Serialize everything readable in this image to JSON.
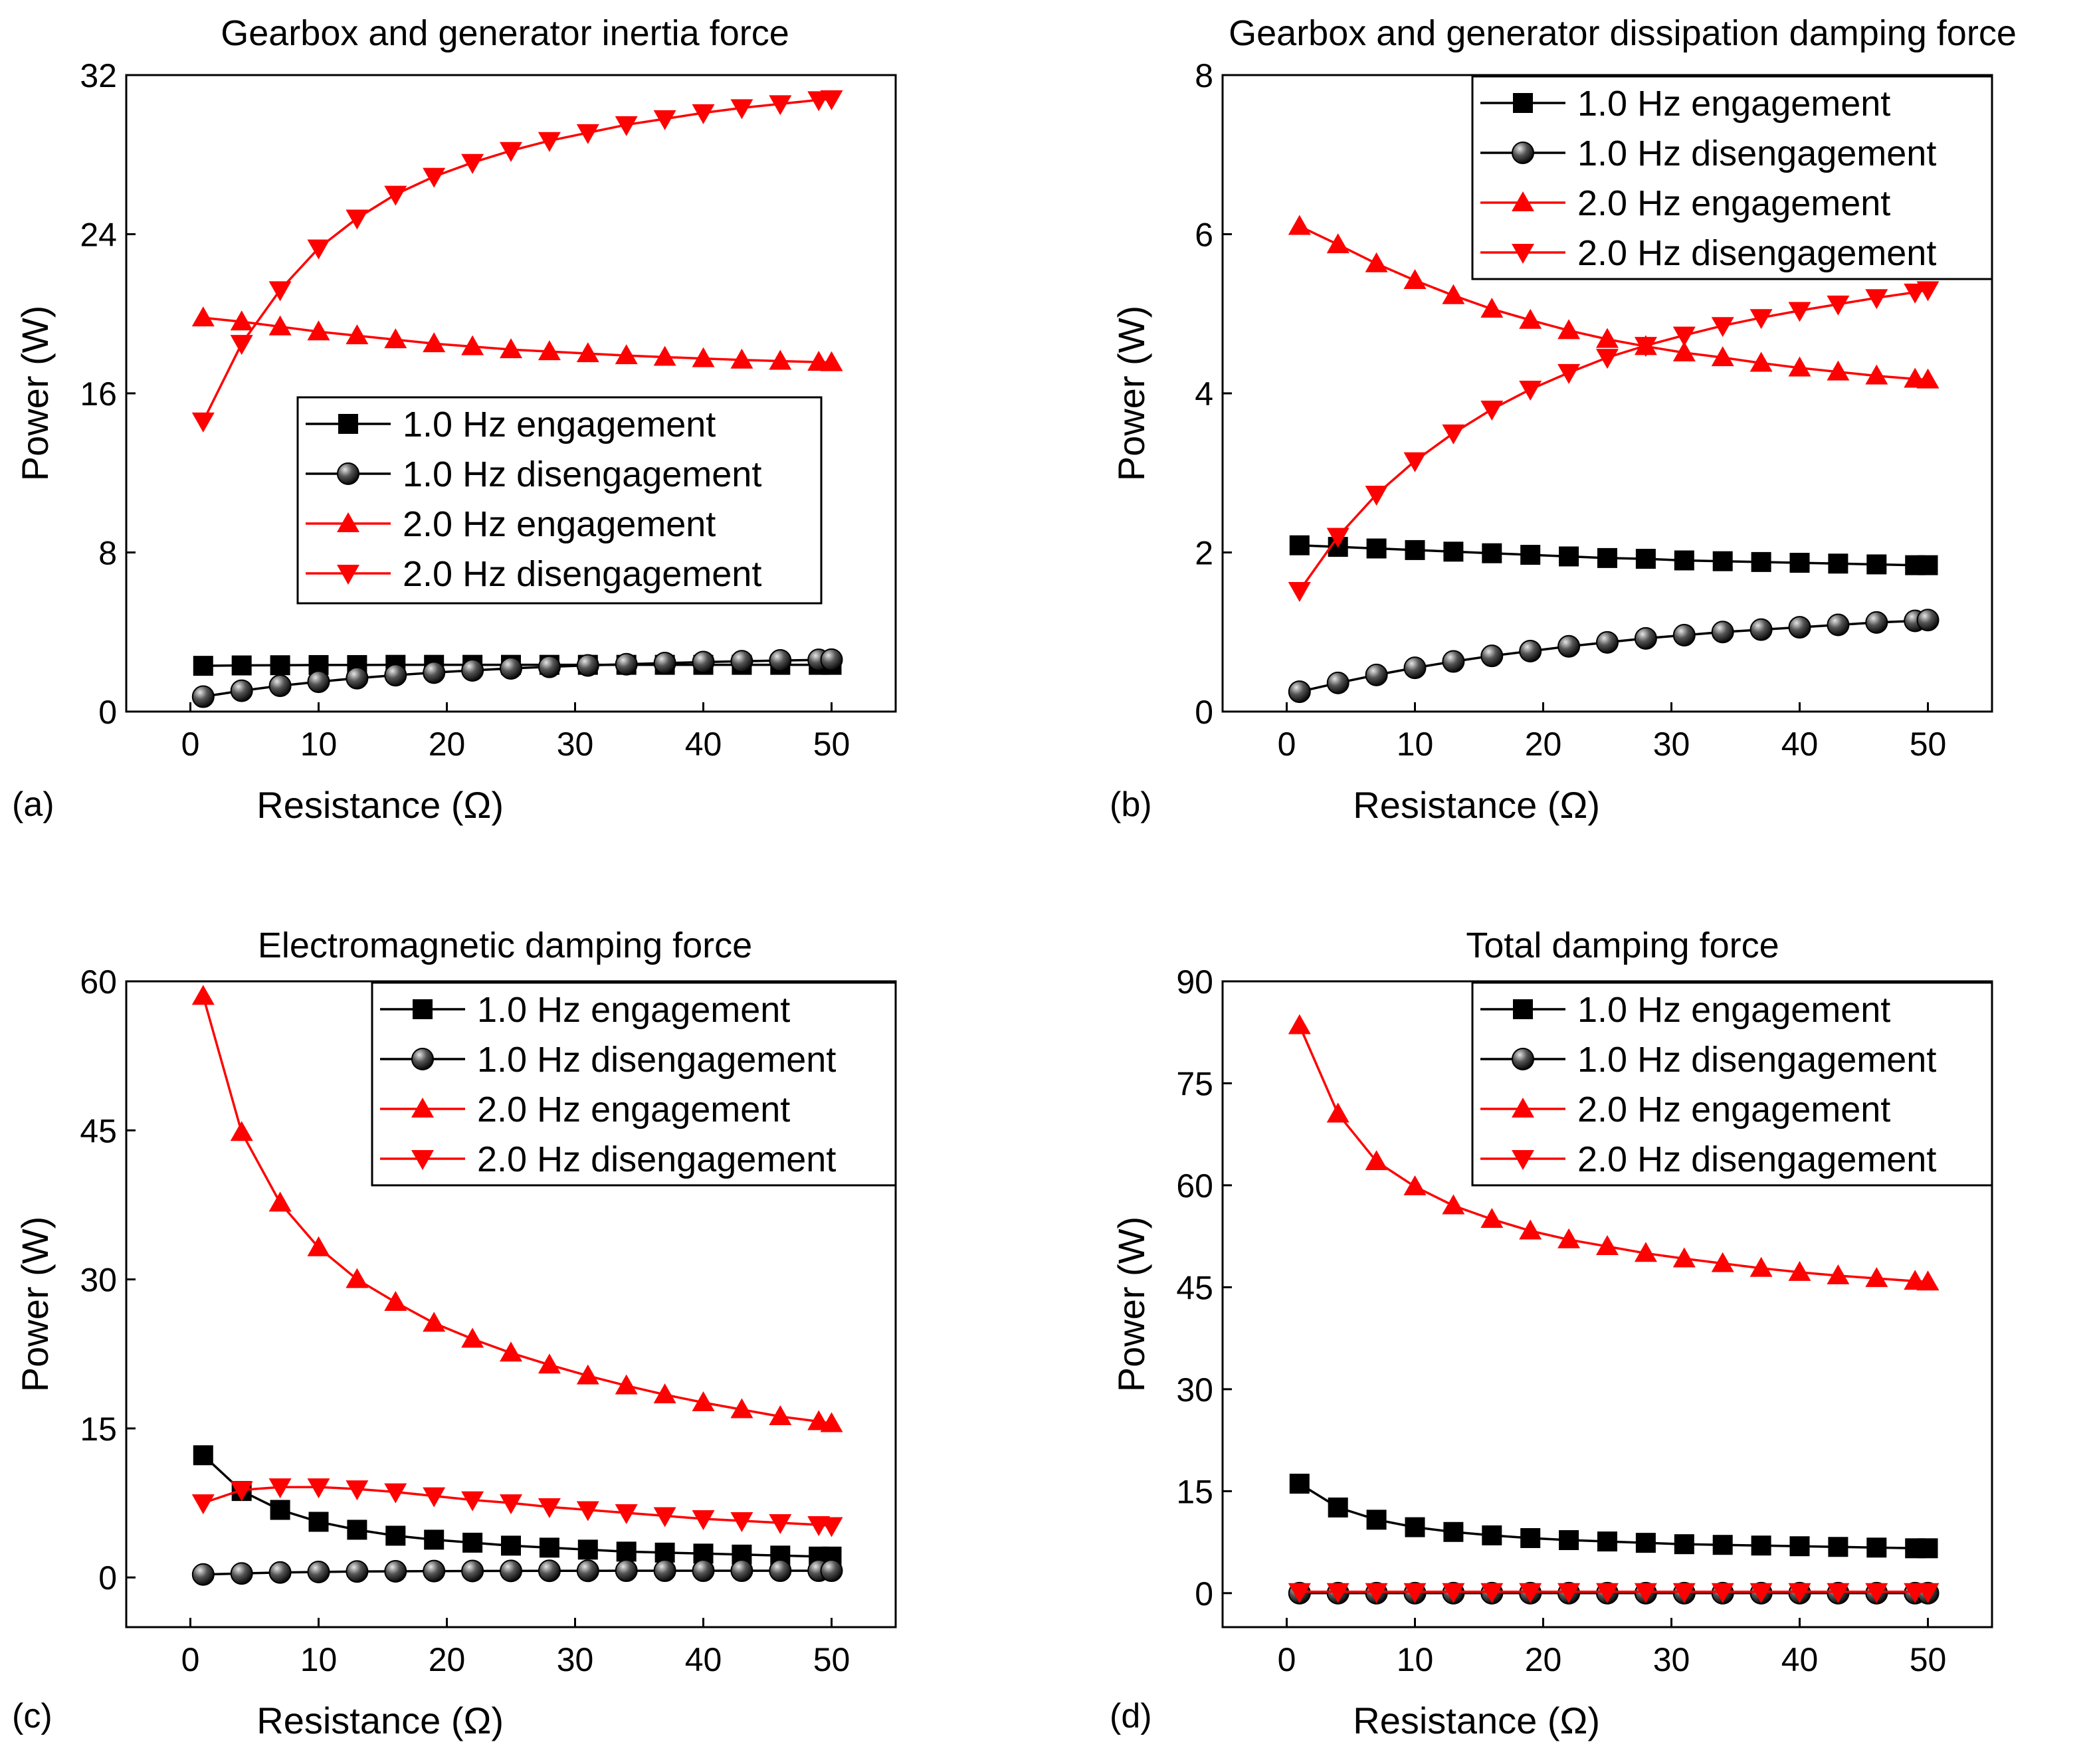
{
  "figure": {
    "xlabel": "Resistance (Ω)",
    "ylabel": "Power (W)",
    "series_colors": [
      "#000000",
      "#000000",
      "#ff0000",
      "#ff0000"
    ],
    "series_markers": [
      "square",
      "sphere",
      "triangle-up",
      "triangle-down"
    ]
  },
  "chart_data": [
    {
      "type": "line",
      "panel_label": "(a)",
      "title": "Gearbox and generator inertia force",
      "xlabel": "Resistance (Ω)",
      "ylabel": "Power (W)",
      "xlim": [
        -5,
        55
      ],
      "ylim": [
        0,
        32
      ],
      "xticks": [
        0,
        10,
        20,
        30,
        40,
        50
      ],
      "yticks": [
        0,
        8,
        16,
        24,
        32
      ],
      "legend_position": "center-right",
      "x": [
        1,
        4,
        7,
        10,
        13,
        16,
        19,
        22,
        25,
        28,
        31,
        34,
        37,
        40,
        43,
        46,
        49,
        50
      ],
      "series": [
        {
          "name": "1.0 Hz engagement",
          "values": [
            2.3,
            2.32,
            2.33,
            2.34,
            2.34,
            2.35,
            2.35,
            2.35,
            2.35,
            2.35,
            2.35,
            2.35,
            2.35,
            2.35,
            2.35,
            2.35,
            2.35,
            2.35
          ]
        },
        {
          "name": "1.0 Hz disengagement",
          "values": [
            0.75,
            1.05,
            1.3,
            1.5,
            1.68,
            1.83,
            1.96,
            2.07,
            2.17,
            2.25,
            2.32,
            2.38,
            2.44,
            2.49,
            2.53,
            2.57,
            2.6,
            2.61
          ]
        },
        {
          "name": "2.0 Hz engagement",
          "values": [
            19.8,
            19.6,
            19.35,
            19.1,
            18.9,
            18.7,
            18.5,
            18.35,
            18.2,
            18.1,
            18.0,
            17.9,
            17.82,
            17.75,
            17.68,
            17.62,
            17.57,
            17.55
          ]
        },
        {
          "name": "2.0 Hz disengagement",
          "values": [
            14.6,
            18.5,
            21.2,
            23.3,
            24.8,
            26.0,
            26.9,
            27.6,
            28.2,
            28.7,
            29.1,
            29.5,
            29.8,
            30.1,
            30.35,
            30.55,
            30.75,
            30.8
          ]
        }
      ]
    },
    {
      "type": "line",
      "panel_label": "(b)",
      "title": "Gearbox and generator dissipation damping force",
      "xlabel": "Resistance (Ω)",
      "ylabel": "Power (W)",
      "xlim": [
        -5,
        55
      ],
      "ylim": [
        0,
        8
      ],
      "xticks": [
        0,
        10,
        20,
        30,
        40,
        50
      ],
      "yticks": [
        0,
        2,
        4,
        6,
        8
      ],
      "legend_position": "top-right",
      "x": [
        1,
        4,
        7,
        10,
        13,
        16,
        19,
        22,
        25,
        28,
        31,
        34,
        37,
        40,
        43,
        46,
        49,
        50
      ],
      "series": [
        {
          "name": "1.0 Hz engagement",
          "values": [
            2.09,
            2.07,
            2.05,
            2.03,
            2.01,
            1.99,
            1.97,
            1.95,
            1.93,
            1.92,
            1.9,
            1.89,
            1.88,
            1.87,
            1.86,
            1.85,
            1.84,
            1.84
          ]
        },
        {
          "name": "1.0 Hz disengagement",
          "values": [
            0.25,
            0.36,
            0.46,
            0.55,
            0.63,
            0.7,
            0.76,
            0.82,
            0.87,
            0.92,
            0.96,
            1.0,
            1.03,
            1.06,
            1.09,
            1.12,
            1.14,
            1.15
          ]
        },
        {
          "name": "2.0 Hz engagement",
          "values": [
            6.1,
            5.87,
            5.63,
            5.42,
            5.23,
            5.06,
            4.92,
            4.79,
            4.68,
            4.59,
            4.51,
            4.45,
            4.38,
            4.32,
            4.27,
            4.22,
            4.18,
            4.17
          ]
        },
        {
          "name": "2.0 Hz disengagement",
          "values": [
            1.52,
            2.2,
            2.73,
            3.15,
            3.5,
            3.8,
            4.05,
            4.26,
            4.45,
            4.6,
            4.73,
            4.85,
            4.95,
            5.04,
            5.12,
            5.2,
            5.27,
            5.3
          ]
        }
      ]
    },
    {
      "type": "line",
      "panel_label": "(c)",
      "title": "Electromagnetic damping force",
      "xlabel": "Resistance (Ω)",
      "ylabel": "Power (W)",
      "xlim": [
        -5,
        55
      ],
      "ylim": [
        -5,
        60
      ],
      "xticks": [
        0,
        10,
        20,
        30,
        40,
        50
      ],
      "yticks": [
        0,
        15,
        30,
        45,
        60
      ],
      "legend_position": "top-right",
      "x": [
        1,
        4,
        7,
        10,
        13,
        16,
        19,
        22,
        25,
        28,
        31,
        34,
        37,
        40,
        43,
        46,
        49,
        50
      ],
      "series": [
        {
          "name": "1.0 Hz engagement",
          "values": [
            12.3,
            8.7,
            6.8,
            5.6,
            4.8,
            4.2,
            3.8,
            3.5,
            3.2,
            3.0,
            2.8,
            2.6,
            2.5,
            2.4,
            2.3,
            2.2,
            2.1,
            2.1
          ]
        },
        {
          "name": "1.0 Hz disengagement",
          "values": [
            0.3,
            0.4,
            0.5,
            0.55,
            0.6,
            0.62,
            0.64,
            0.65,
            0.66,
            0.67,
            0.67,
            0.68,
            0.68,
            0.68,
            0.68,
            0.68,
            0.68,
            0.68
          ]
        },
        {
          "name": "2.0 Hz engagement",
          "values": [
            58.5,
            44.8,
            37.7,
            33.2,
            30.0,
            27.7,
            25.6,
            24.0,
            22.6,
            21.4,
            20.3,
            19.3,
            18.4,
            17.6,
            16.9,
            16.2,
            15.7,
            15.5
          ]
        },
        {
          "name": "2.0 Hz disengagement",
          "values": [
            7.5,
            8.8,
            9.1,
            9.1,
            8.9,
            8.6,
            8.2,
            7.8,
            7.5,
            7.1,
            6.8,
            6.5,
            6.2,
            5.9,
            5.7,
            5.5,
            5.3,
            5.2
          ]
        }
      ]
    },
    {
      "type": "line",
      "panel_label": "(d)",
      "title": "Total damping force",
      "xlabel": "Resistance (Ω)",
      "ylabel": "Power (W)",
      "xlim": [
        -5,
        55
      ],
      "ylim": [
        -5,
        90
      ],
      "xticks": [
        0,
        10,
        20,
        30,
        40,
        50
      ],
      "yticks": [
        0,
        15,
        30,
        45,
        60,
        75,
        90
      ],
      "legend_position": "top-right",
      "x": [
        1,
        4,
        7,
        10,
        13,
        16,
        19,
        22,
        25,
        28,
        31,
        34,
        37,
        40,
        43,
        46,
        49,
        50
      ],
      "series": [
        {
          "name": "1.0 Hz engagement",
          "values": [
            16.1,
            12.6,
            10.8,
            9.7,
            9.0,
            8.5,
            8.1,
            7.8,
            7.6,
            7.4,
            7.2,
            7.1,
            7.0,
            6.9,
            6.8,
            6.7,
            6.6,
            6.6
          ]
        },
        {
          "name": "1.0 Hz disengagement",
          "values": [
            0.0,
            0.0,
            0.0,
            0.0,
            0.0,
            0.0,
            0.0,
            0.0,
            0.0,
            0.0,
            0.0,
            0.0,
            0.0,
            0.0,
            0.0,
            0.0,
            0.0,
            0.0
          ]
        },
        {
          "name": "2.0 Hz engagement",
          "values": [
            83.5,
            70.5,
            63.5,
            59.8,
            57.0,
            55.0,
            53.3,
            52.0,
            51.0,
            50.0,
            49.2,
            48.5,
            47.8,
            47.2,
            46.7,
            46.3,
            45.9,
            45.8
          ]
        },
        {
          "name": "2.0 Hz disengagement",
          "values": [
            0.2,
            0.2,
            0.2,
            0.2,
            0.2,
            0.2,
            0.2,
            0.2,
            0.2,
            0.2,
            0.2,
            0.2,
            0.2,
            0.2,
            0.2,
            0.2,
            0.2,
            0.2
          ]
        }
      ]
    }
  ]
}
